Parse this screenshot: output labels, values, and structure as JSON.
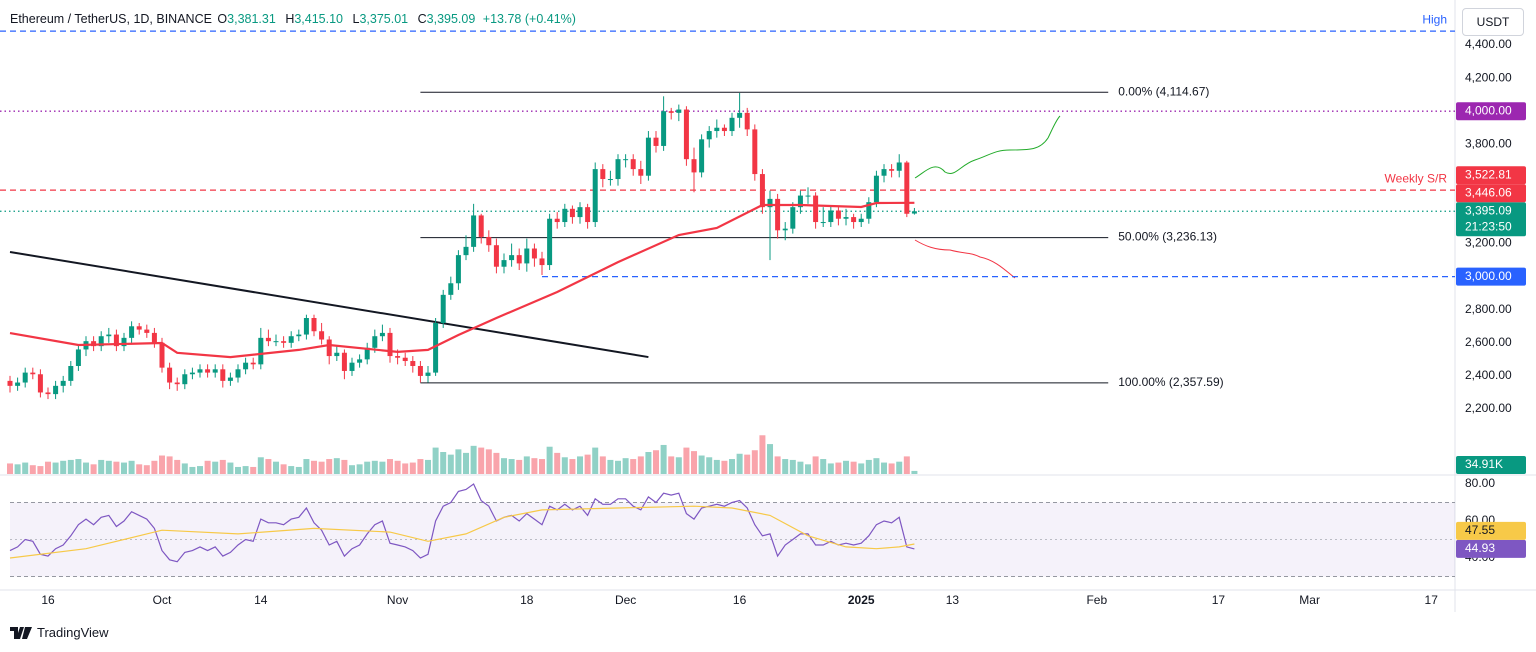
{
  "chart_data": {
    "type": "candlestick",
    "title": "Ethereum / TetherUS, 1D, BINANCE",
    "header": [
      {
        "key": "O",
        "label": "3,381.31"
      },
      {
        "key": "H",
        "label": "3,415.10"
      },
      {
        "key": "L",
        "label": "3,375.01"
      },
      {
        "key": "C",
        "label": "3,395.09"
      }
    ],
    "change": "+13.78 (+0.41%)",
    "currency": "USDT",
    "brand": "TradingView",
    "color_up": "#089981",
    "color_down": "#f23645",
    "open": [
      2370,
      2340,
      2360,
      2420,
      2410,
      2300,
      2290,
      2340,
      2370,
      2460,
      2560,
      2610,
      2580,
      2640,
      2650,
      2580,
      2630,
      2700,
      2680,
      2660,
      2600,
      2450,
      2360,
      2350,
      2410,
      2420,
      2440,
      2420,
      2440,
      2370,
      2390,
      2440,
      2480,
      2470,
      2630,
      2610,
      2610,
      2600,
      2640,
      2650,
      2750,
      2670,
      2620,
      2520,
      2540,
      2430,
      2480,
      2500,
      2570,
      2640,
      2660,
      2520,
      2510,
      2490,
      2460,
      2400,
      2420,
      2720,
      2890,
      2960,
      3130,
      3180,
      3370,
      3240,
      3190,
      3060,
      3100,
      3130,
      3080,
      3170,
      3110,
      3070,
      3350,
      3330,
      3410,
      3360,
      3420,
      3330,
      3650,
      3590,
      3590,
      3710,
      3710,
      3650,
      3610,
      3840,
      3790,
      4000,
      3990,
      4010,
      3710,
      3630,
      3830,
      3880,
      3900,
      3880,
      3960,
      3990,
      3890,
      3620,
      3420,
      3470,
      3280,
      3290,
      3420,
      3490,
      3490,
      3330,
      3330,
      3400,
      3350,
      3360,
      3330,
      3350,
      3450,
      3610,
      3650,
      3640,
      3690,
      3381.31
    ],
    "high": [
      2400,
      2390,
      2450,
      2450,
      2440,
      2330,
      2370,
      2400,
      2490,
      2590,
      2640,
      2640,
      2670,
      2690,
      2680,
      2660,
      2730,
      2720,
      2710,
      2690,
      2630,
      2480,
      2390,
      2440,
      2450,
      2470,
      2470,
      2470,
      2470,
      2420,
      2470,
      2510,
      2510,
      2690,
      2680,
      2650,
      2640,
      2670,
      2680,
      2770,
      2770,
      2720,
      2640,
      2580,
      2560,
      2510,
      2530,
      2600,
      2680,
      2710,
      2690,
      2560,
      2540,
      2520,
      2490,
      2460,
      2750,
      2920,
      3000,
      3160,
      3250,
      3440,
      3380,
      3280,
      3230,
      3140,
      3200,
      3170,
      3230,
      3200,
      3150,
      3380,
      3390,
      3440,
      3430,
      3450,
      3440,
      3690,
      3680,
      3640,
      3740,
      3740,
      3740,
      3700,
      3880,
      3880,
      4090,
      4020,
      4040,
      4030,
      3780,
      3860,
      3910,
      3950,
      3920,
      3990,
      4110,
      4020,
      3920,
      3650,
      3520,
      3500,
      3330,
      3450,
      3520,
      3540,
      3510,
      3420,
      3430,
      3420,
      3410,
      3380,
      3380,
      3480,
      3640,
      3680,
      3680,
      3740,
      3700,
      3415.1
    ],
    "low": [
      2300,
      2310,
      2330,
      2380,
      2270,
      2260,
      2260,
      2300,
      2340,
      2430,
      2520,
      2550,
      2550,
      2600,
      2550,
      2550,
      2600,
      2650,
      2630,
      2570,
      2420,
      2320,
      2310,
      2320,
      2380,
      2390,
      2390,
      2390,
      2330,
      2340,
      2360,
      2410,
      2440,
      2440,
      2580,
      2580,
      2570,
      2570,
      2610,
      2620,
      2640,
      2590,
      2470,
      2490,
      2380,
      2400,
      2450,
      2470,
      2540,
      2610,
      2480,
      2470,
      2460,
      2420,
      2360,
      2360,
      2400,
      2690,
      2860,
      2920,
      3100,
      3150,
      3200,
      3150,
      3020,
      3020,
      3060,
      3040,
      3030,
      3060,
      3010,
      3040,
      3290,
      3300,
      3320,
      3320,
      3290,
      3300,
      3540,
      3550,
      3550,
      3660,
      3610,
      3560,
      3580,
      3750,
      3760,
      3950,
      3940,
      3670,
      3510,
      3600,
      3780,
      3840,
      3850,
      3850,
      3900,
      3850,
      3580,
      3380,
      3100,
      3230,
      3220,
      3260,
      3380,
      3440,
      3290,
      3300,
      3300,
      3310,
      3310,
      3290,
      3300,
      3320,
      3420,
      3570,
      3600,
      3600,
      3360,
      3375.01
    ],
    "close": [
      2340,
      2360,
      2420,
      2410,
      2300,
      2290,
      2340,
      2370,
      2460,
      2560,
      2610,
      2580,
      2640,
      2650,
      2580,
      2630,
      2700,
      2680,
      2660,
      2600,
      2450,
      2360,
      2350,
      2410,
      2420,
      2440,
      2420,
      2440,
      2370,
      2390,
      2440,
      2480,
      2470,
      2630,
      2610,
      2610,
      2600,
      2640,
      2650,
      2750,
      2670,
      2620,
      2520,
      2540,
      2430,
      2480,
      2500,
      2570,
      2640,
      2660,
      2520,
      2510,
      2490,
      2460,
      2400,
      2420,
      2720,
      2890,
      2960,
      3130,
      3180,
      3370,
      3240,
      3190,
      3060,
      3100,
      3130,
      3080,
      3170,
      3110,
      3070,
      3350,
      3330,
      3410,
      3360,
      3420,
      3330,
      3650,
      3590,
      3590,
      3710,
      3710,
      3650,
      3610,
      3840,
      3790,
      4000,
      3990,
      4010,
      3710,
      3630,
      3830,
      3880,
      3900,
      3880,
      3960,
      3990,
      3890,
      3620,
      3420,
      3470,
      3280,
      3290,
      3420,
      3490,
      3490,
      3330,
      3330,
      3400,
      3350,
      3360,
      3330,
      3350,
      3450,
      3610,
      3650,
      3640,
      3690,
      3380,
      3395.09
    ],
    "xlim": [
      0,
      189.47
    ],
    "xticks": [
      {
        "value": 5,
        "label": "16"
      },
      {
        "value": 20,
        "label": "Oct"
      },
      {
        "value": 33,
        "label": "14"
      },
      {
        "value": 51,
        "label": "Nov"
      },
      {
        "value": 68,
        "label": "18"
      },
      {
        "value": 81,
        "label": "Dec"
      },
      {
        "value": 96,
        "label": "16"
      },
      {
        "value": 112,
        "label": "2025"
      },
      {
        "value": 124,
        "label": "13"
      },
      {
        "value": 143,
        "label": "Feb"
      },
      {
        "value": 159,
        "label": "17"
      },
      {
        "value": 171,
        "label": "Mar"
      },
      {
        "value": 187,
        "label": "17"
      }
    ],
    "ylim": [
      2085.2,
      4623.7
    ],
    "yticks": [
      {
        "value": 2200,
        "label": "2,200.00"
      },
      {
        "value": 2400,
        "label": "2,400.00"
      },
      {
        "value": 2600,
        "label": "2,600.00"
      },
      {
        "value": 2800,
        "label": "2,800.00"
      },
      {
        "value": 3000,
        "label": "3,000.00"
      },
      {
        "value": 3200,
        "label": "3,200.00"
      },
      {
        "value": 3400,
        "label": "3,400.00"
      },
      {
        "value": 3600,
        "label": "3,600.00"
      },
      {
        "value": 3800,
        "label": "3,800.00"
      },
      {
        "value": 4000,
        "label": "4,000.00"
      },
      {
        "value": 4200,
        "label": "4,200.00"
      },
      {
        "value": 4400,
        "label": "4,400.00"
      }
    ],
    "ma": {
      "color": "#f23645",
      "x": [
        0,
        9,
        20,
        22,
        29,
        38,
        42,
        51,
        55,
        59,
        64,
        72,
        80,
        88,
        93,
        99,
        104,
        112,
        114,
        119
      ],
      "values": [
        2659,
        2587,
        2599,
        2540,
        2514,
        2557,
        2587,
        2545,
        2557,
        2647,
        2750,
        2907,
        3088,
        3252,
        3294,
        3433,
        3433,
        3421,
        3445,
        3446.06
      ],
      "last_label": "3,446.06"
    },
    "trendline": {
      "x": [
        0,
        84
      ],
      "values": [
        3149,
        2514
      ]
    },
    "levels": [
      {
        "value": 4484,
        "color": "#2962ff",
        "style": "dashed",
        "text": "High"
      },
      {
        "value": 4000,
        "color": "#9c27b0",
        "style": "dotted",
        "label": "4,000.00"
      },
      {
        "value": 3522.81,
        "color": "#f23645",
        "style": "dashed",
        "label": "3,522.81",
        "text": "Weekly S/R"
      },
      {
        "value": 3395.09,
        "color": "#089981",
        "style": "dotted",
        "label": "3,395.09",
        "countdown": "21:23:50"
      },
      {
        "value": 3000,
        "color": "#2962ff",
        "style": "dashed",
        "label": "3,000.00",
        "x_start": 70
      }
    ],
    "fib": {
      "x": [
        54,
        144.5
      ],
      "levels": [
        {
          "value": 4114.67,
          "label": "0.00% (4,114.67)"
        },
        {
          "value": 3236.13,
          "label": "50.00% (3,236.13)"
        },
        {
          "value": 2357.59,
          "label": "100.00% (2,357.59)"
        }
      ]
    },
    "volume": {
      "ylim": [
        0,
        500
      ],
      "values": [
        120,
        110,
        130,
        100,
        90,
        140,
        130,
        150,
        160,
        170,
        130,
        110,
        160,
        150,
        140,
        130,
        150,
        110,
        100,
        150,
        210,
        200,
        160,
        120,
        80,
        90,
        150,
        140,
        160,
        130,
        80,
        90,
        80,
        190,
        170,
        140,
        110,
        90,
        80,
        170,
        150,
        140,
        170,
        180,
        160,
        100,
        110,
        140,
        150,
        140,
        170,
        150,
        120,
        130,
        170,
        160,
        300,
        250,
        220,
        280,
        240,
        320,
        300,
        280,
        240,
        180,
        170,
        160,
        200,
        180,
        170,
        310,
        240,
        190,
        170,
        200,
        220,
        300,
        200,
        160,
        150,
        180,
        170,
        200,
        250,
        270,
        330,
        200,
        190,
        300,
        260,
        210,
        190,
        160,
        150,
        170,
        230,
        220,
        270,
        440,
        340,
        200,
        170,
        160,
        140,
        110,
        200,
        170,
        120,
        130,
        150,
        140,
        120,
        160,
        180,
        130,
        120,
        140,
        200,
        34.91
      ],
      "last_label": "34.91K"
    },
    "rsi": {
      "ylim": [
        22.7,
        84.3
      ],
      "yticks": [
        {
          "value": 40,
          "label": "40.00"
        },
        {
          "value": 60,
          "label": "60.00"
        },
        {
          "value": 80,
          "label": "80.00"
        }
      ],
      "bands": [
        30,
        70
      ],
      "mid": 50,
      "color": "#7e57c2",
      "values": [
        44,
        46,
        50,
        49,
        42,
        41,
        45,
        47,
        52,
        58,
        61,
        58,
        62,
        63,
        57,
        60,
        65,
        63,
        61,
        56,
        44,
        39,
        38,
        43,
        44,
        46,
        44,
        46,
        41,
        43,
        47,
        50,
        49,
        61,
        59,
        59,
        58,
        61,
        62,
        67,
        59,
        55,
        47,
        49,
        41,
        45,
        47,
        53,
        58,
        60,
        48,
        47,
        46,
        44,
        40,
        42,
        60,
        68,
        70,
        76,
        77,
        80,
        71,
        68,
        60,
        62,
        63,
        60,
        64,
        61,
        58,
        68,
        66,
        69,
        66,
        68,
        63,
        72,
        69,
        69,
        72,
        72,
        68,
        66,
        73,
        70,
        75,
        74,
        75,
        64,
        61,
        67,
        68,
        69,
        68,
        70,
        71,
        67,
        58,
        52,
        53,
        41,
        47,
        50,
        53,
        53,
        47,
        47,
        49,
        47,
        48,
        47,
        48,
        52,
        58,
        60,
        59,
        62,
        46,
        44.93
      ],
      "last_label": "44.93",
      "ma": {
        "color": "#f7c948",
        "x": [
          0,
          10,
          20,
          30,
          40,
          50,
          55,
          60,
          65,
          70,
          80,
          90,
          95,
          100,
          105,
          110,
          114,
          117,
          119
        ],
        "values": [
          40,
          45,
          55,
          53,
          56,
          54,
          49,
          53,
          62,
          66,
          67,
          68,
          67,
          63,
          52,
          46,
          45,
          46,
          47.55
        ],
        "last_label": "47.55"
      }
    }
  }
}
